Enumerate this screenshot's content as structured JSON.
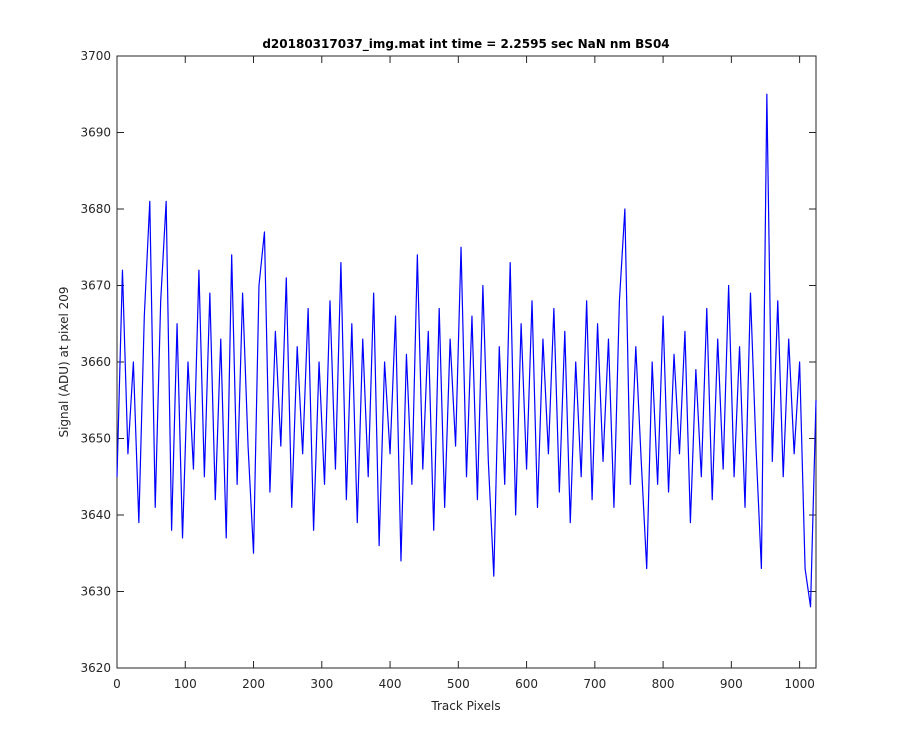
{
  "chart_data": {
    "type": "line",
    "title": "d20180317037_img.mat int time = 2.2595 sec  NaN nm BS04",
    "xlabel": "Track Pixels",
    "ylabel": "Signal (ADU) at pixel 209",
    "x": [
      0,
      8,
      16,
      24,
      32,
      40,
      48,
      56,
      64,
      72,
      80,
      88,
      96,
      104,
      112,
      120,
      128,
      136,
      144,
      152,
      160,
      168,
      176,
      184,
      192,
      200,
      208,
      216,
      224,
      232,
      240,
      248,
      256,
      264,
      272,
      280,
      288,
      296,
      304,
      312,
      320,
      328,
      336,
      344,
      352,
      360,
      368,
      376,
      384,
      392,
      400,
      408,
      416,
      424,
      432,
      440,
      448,
      456,
      464,
      472,
      480,
      488,
      496,
      504,
      512,
      520,
      528,
      536,
      544,
      552,
      560,
      568,
      576,
      584,
      592,
      600,
      608,
      616,
      624,
      632,
      640,
      648,
      656,
      664,
      672,
      680,
      688,
      696,
      704,
      712,
      720,
      728,
      736,
      744,
      752,
      760,
      768,
      776,
      784,
      792,
      800,
      808,
      816,
      824,
      832,
      840,
      848,
      856,
      864,
      872,
      880,
      888,
      896,
      904,
      912,
      920,
      928,
      936,
      944,
      952,
      960,
      968,
      976,
      984,
      992,
      1000,
      1008,
      1016,
      1024
    ],
    "series": [
      {
        "name": "signal",
        "color": "#0000ff",
        "values": [
          3645,
          3672,
          3648,
          3660,
          3639,
          3666,
          3681,
          3641,
          3668,
          3681,
          3638,
          3665,
          3637,
          3660,
          3646,
          3672,
          3645,
          3669,
          3642,
          3663,
          3637,
          3674,
          3644,
          3669,
          3649,
          3635,
          3670,
          3677,
          3643,
          3664,
          3649,
          3671,
          3641,
          3662,
          3648,
          3667,
          3638,
          3660,
          3644,
          3668,
          3646,
          3673,
          3642,
          3665,
          3639,
          3663,
          3645,
          3669,
          3636,
          3660,
          3648,
          3666,
          3634,
          3661,
          3644,
          3674,
          3646,
          3664,
          3638,
          3667,
          3641,
          3663,
          3649,
          3675,
          3645,
          3666,
          3642,
          3670,
          3647,
          3632,
          3662,
          3644,
          3673,
          3640,
          3665,
          3646,
          3668,
          3641,
          3663,
          3648,
          3667,
          3643,
          3664,
          3639,
          3660,
          3645,
          3668,
          3642,
          3665,
          3647,
          3663,
          3641,
          3668,
          3680,
          3644,
          3662,
          3647,
          3633,
          3660,
          3644,
          3666,
          3643,
          3661,
          3648,
          3664,
          3639,
          3659,
          3645,
          3667,
          3642,
          3663,
          3646,
          3670,
          3645,
          3662,
          3641,
          3669,
          3649,
          3633,
          3695,
          3647,
          3668,
          3645,
          3663,
          3648,
          3660,
          3633,
          3628,
          3655
        ]
      }
    ],
    "xlim": [
      0,
      1024
    ],
    "ylim": [
      3620,
      3700
    ],
    "xticks": [
      0,
      100,
      200,
      300,
      400,
      500,
      600,
      700,
      800,
      900,
      1000
    ],
    "yticks": [
      3620,
      3630,
      3640,
      3650,
      3660,
      3670,
      3680,
      3690,
      3700
    ],
    "grid": false
  }
}
